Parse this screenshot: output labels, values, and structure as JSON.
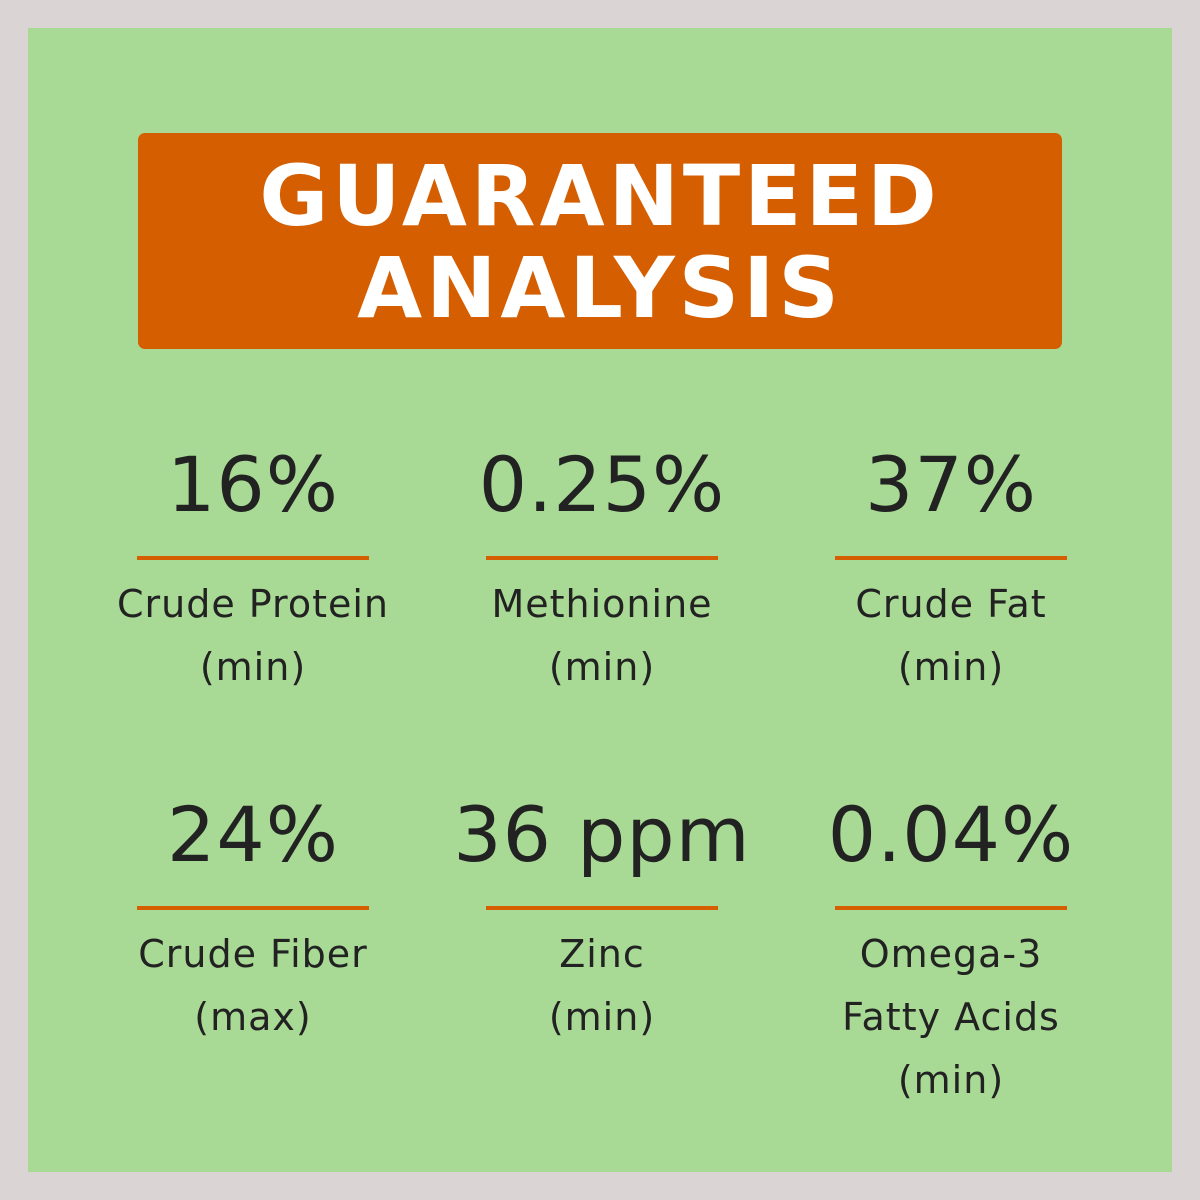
{
  "header": {
    "title_lines": [
      "GUARANTEED",
      "ANALYSIS"
    ]
  },
  "items": [
    {
      "value": "16%",
      "label_lines": [
        "Crude Protein",
        "(min)"
      ]
    },
    {
      "value": "0.25%",
      "label_lines": [
        "Methionine",
        "(min)"
      ]
    },
    {
      "value": "37%",
      "label_lines": [
        "Crude Fat",
        "(min)"
      ]
    },
    {
      "value": "24%",
      "label_lines": [
        "Crude Fiber",
        "(max)"
      ]
    },
    {
      "value": "36 ppm",
      "label_lines": [
        "Zinc",
        "(min)"
      ]
    },
    {
      "value": "0.04%",
      "label_lines": [
        "Omega-3",
        "Fatty Acids",
        "(min)"
      ]
    }
  ]
}
